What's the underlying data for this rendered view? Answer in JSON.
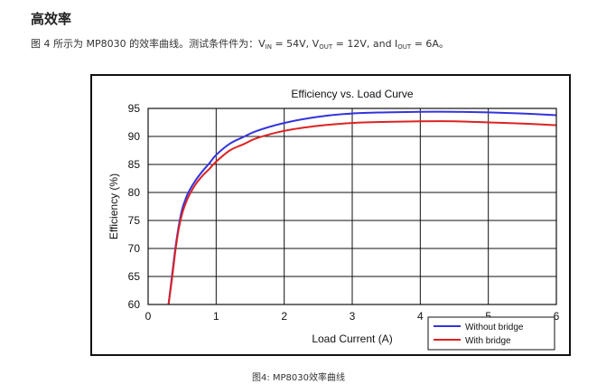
{
  "heading": "高效率",
  "intro": {
    "prefix": "图 4 所示为 MP8030 的效率曲线。测试条件件为：V",
    "vin_sub": "IN",
    "mid1": " = 54V, V",
    "vout_sub": "OUT",
    "mid2": " = 12V, and I",
    "iout_sub": "OUT",
    "suffix": " = 6A。"
  },
  "caption": "图4: MP8030效率曲线",
  "chart_data": {
    "type": "line",
    "title": "Efficiency vs. Load Curve",
    "xlabel": "Load Current (A)",
    "ylabel": "Efficiency (%)",
    "xlim": [
      0,
      6
    ],
    "ylim": [
      60,
      95
    ],
    "xticks": [
      0,
      1,
      2,
      3,
      4,
      5,
      6
    ],
    "yticks": [
      60,
      65,
      70,
      75,
      80,
      85,
      90,
      95
    ],
    "grid": true,
    "legend_position": "bottom-right",
    "series": [
      {
        "name": "Without bridge",
        "color": "#3333dd",
        "x": [
          0.3,
          0.35,
          0.4,
          0.45,
          0.5,
          0.55,
          0.6,
          0.7,
          0.8,
          0.9,
          1.0,
          1.2,
          1.4,
          1.6,
          2.0,
          2.5,
          3.0,
          3.5,
          4.0,
          4.5,
          5.0,
          5.5,
          6.0
        ],
        "y": [
          60,
          65,
          70,
          74,
          77,
          78.8,
          80.2,
          82.2,
          83.8,
          85.2,
          86.7,
          88.7,
          89.9,
          91.0,
          92.4,
          93.5,
          94.1,
          94.3,
          94.4,
          94.4,
          94.3,
          94.1,
          93.8
        ]
      },
      {
        "name": "With bridge",
        "color": "#dd2222",
        "x": [
          0.3,
          0.35,
          0.4,
          0.45,
          0.5,
          0.55,
          0.6,
          0.7,
          0.8,
          0.9,
          1.0,
          1.2,
          1.4,
          1.6,
          2.0,
          2.5,
          3.0,
          3.5,
          4.0,
          4.5,
          5.0,
          5.5,
          6.0
        ],
        "y": [
          60,
          64.5,
          69.5,
          73.5,
          76.2,
          78.0,
          79.4,
          81.5,
          83.0,
          84.2,
          85.5,
          87.5,
          88.6,
          89.7,
          91.0,
          91.9,
          92.4,
          92.6,
          92.7,
          92.7,
          92.5,
          92.3,
          92.0
        ]
      }
    ]
  }
}
